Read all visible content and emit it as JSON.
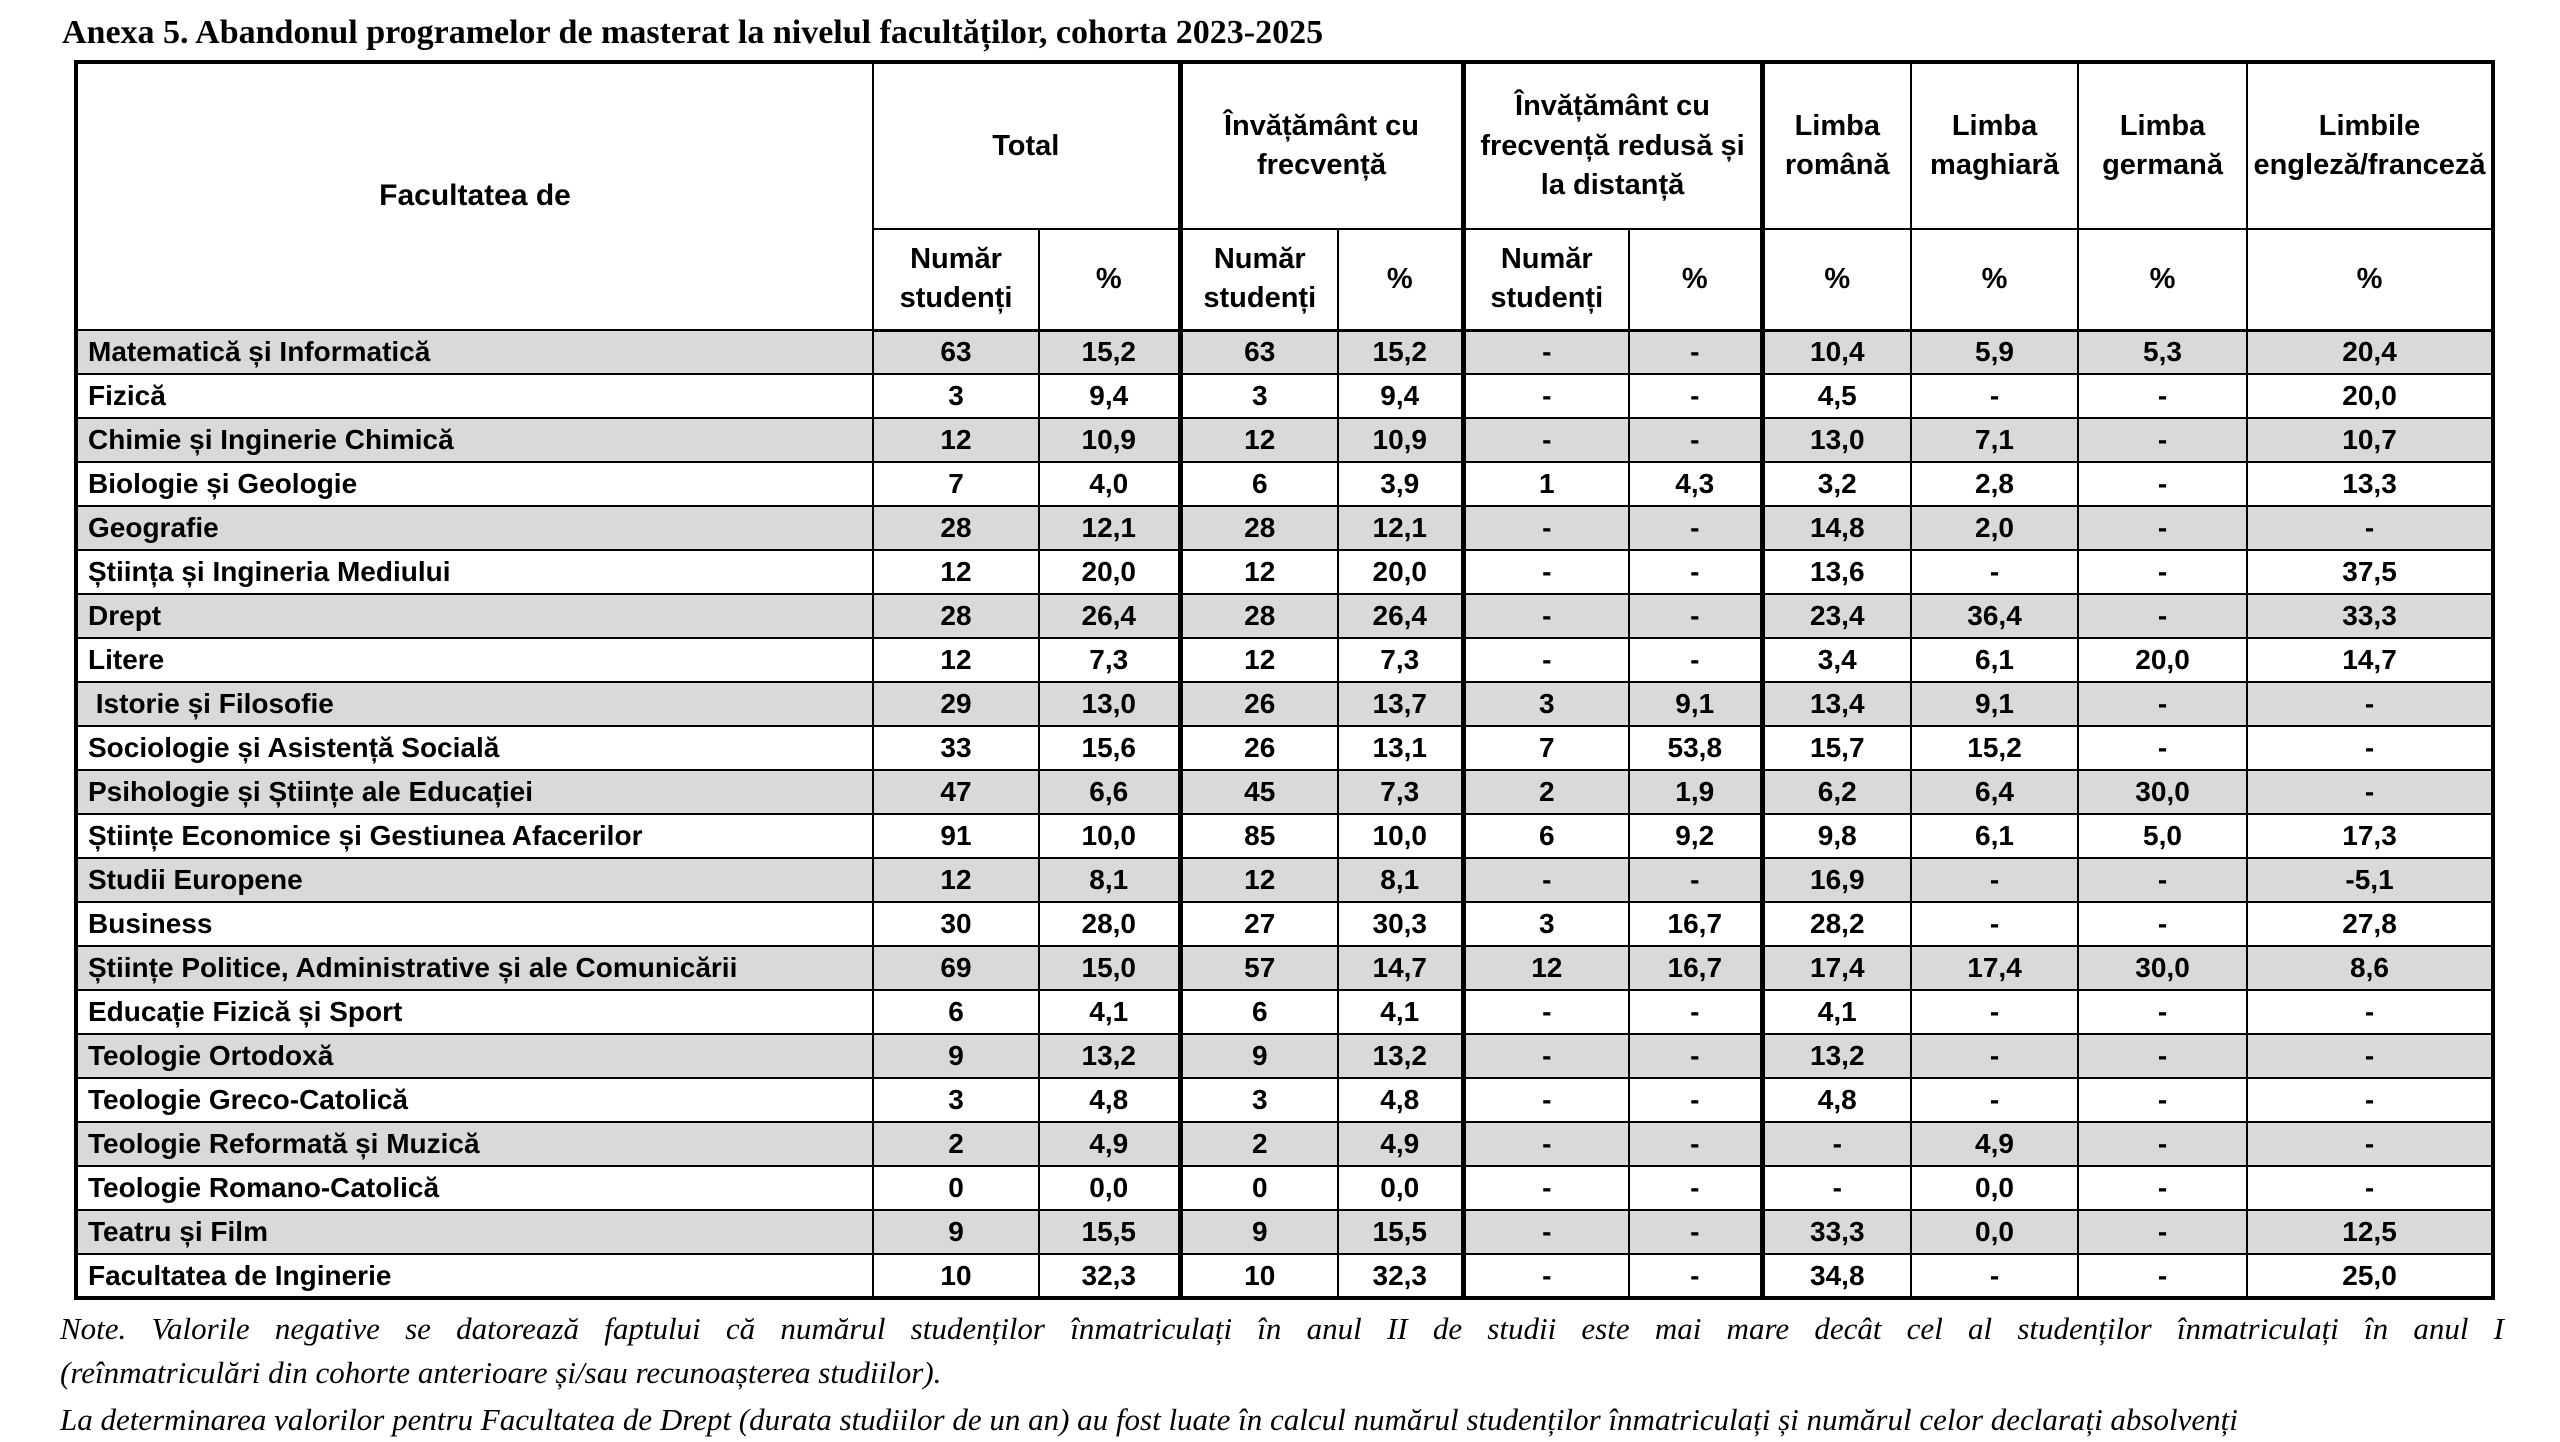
{
  "title": "Anexa 5. Abandonul programelor de masterat la nivelul facultăților, cohorta 2023-2025",
  "table": {
    "facultatea_header": "Facultatea de",
    "num_header": "Număr studenți",
    "pct_header": "%",
    "groups": [
      {
        "label": "Total"
      },
      {
        "label": "Învățământ cu frecvență"
      },
      {
        "label": "Învățământ cu frecvență redusă și la distanță"
      },
      {
        "label": "Limba română"
      },
      {
        "label": "Limba maghiară"
      },
      {
        "label": "Limba germană"
      },
      {
        "label": "Limbile engleză/franceză"
      }
    ],
    "rows": [
      {
        "facultatea": "Matematică și Informatică",
        "values": [
          "63",
          "15,2",
          "63",
          "15,2",
          "-",
          "-",
          "10,4",
          "5,9",
          "5,3",
          "20,4"
        ]
      },
      {
        "facultatea": "Fizică",
        "values": [
          "3",
          "9,4",
          "3",
          "9,4",
          "-",
          "-",
          "4,5",
          "-",
          "-",
          "20,0"
        ]
      },
      {
        "facultatea": "Chimie și Inginerie Chimică",
        "values": [
          "12",
          "10,9",
          "12",
          "10,9",
          "-",
          "-",
          "13,0",
          "7,1",
          "-",
          "10,7"
        ]
      },
      {
        "facultatea": "Biologie și Geologie",
        "values": [
          "7",
          "4,0",
          "6",
          "3,9",
          "1",
          "4,3",
          "3,2",
          "2,8",
          "-",
          "13,3"
        ]
      },
      {
        "facultatea": "Geografie",
        "values": [
          "28",
          "12,1",
          "28",
          "12,1",
          "-",
          "-",
          "14,8",
          "2,0",
          "-",
          "-"
        ]
      },
      {
        "facultatea": "Știința și Ingineria Mediului",
        "values": [
          "12",
          "20,0",
          "12",
          "20,0",
          "-",
          "-",
          "13,6",
          "-",
          "-",
          "37,5"
        ]
      },
      {
        "facultatea": "Drept",
        "values": [
          "28",
          "26,4",
          "28",
          "26,4",
          "-",
          "-",
          "23,4",
          "36,4",
          "-",
          "33,3"
        ]
      },
      {
        "facultatea": "Litere",
        "values": [
          "12",
          "7,3",
          "12",
          "7,3",
          "-",
          "-",
          "3,4",
          "6,1",
          "20,0",
          "14,7"
        ]
      },
      {
        "facultatea": " Istorie și Filosofie",
        "values": [
          "29",
          "13,0",
          "26",
          "13,7",
          "3",
          "9,1",
          "13,4",
          "9,1",
          "-",
          "-"
        ]
      },
      {
        "facultatea": "Sociologie și Asistență Socială",
        "values": [
          "33",
          "15,6",
          "26",
          "13,1",
          "7",
          "53,8",
          "15,7",
          "15,2",
          "-",
          "-"
        ]
      },
      {
        "facultatea": "Psihologie și Științe ale Educației",
        "values": [
          "47",
          "6,6",
          "45",
          "7,3",
          "2",
          "1,9",
          "6,2",
          "6,4",
          "30,0",
          "-"
        ]
      },
      {
        "facultatea": "Științe Economice și Gestiunea Afacerilor",
        "values": [
          "91",
          "10,0",
          "85",
          "10,0",
          "6",
          "9,2",
          "9,8",
          "6,1",
          "5,0",
          "17,3"
        ]
      },
      {
        "facultatea": "Studii Europene",
        "values": [
          "12",
          "8,1",
          "12",
          "8,1",
          "-",
          "-",
          "16,9",
          "-",
          "-",
          "-5,1"
        ]
      },
      {
        "facultatea": "Business",
        "values": [
          "30",
          "28,0",
          "27",
          "30,3",
          "3",
          "16,7",
          "28,2",
          "-",
          "-",
          "27,8"
        ]
      },
      {
        "facultatea": "Științe Politice, Administrative și ale Comunicării",
        "values": [
          "69",
          "15,0",
          "57",
          "14,7",
          "12",
          "16,7",
          "17,4",
          "17,4",
          "30,0",
          "8,6"
        ]
      },
      {
        "facultatea": "Educație Fizică și Sport",
        "values": [
          "6",
          "4,1",
          "6",
          "4,1",
          "-",
          "-",
          "4,1",
          "-",
          "-",
          "-"
        ]
      },
      {
        "facultatea": "Teologie Ortodoxă",
        "values": [
          "9",
          "13,2",
          "9",
          "13,2",
          "-",
          "-",
          "13,2",
          "-",
          "-",
          "-"
        ]
      },
      {
        "facultatea": "Teologie Greco-Catolică",
        "values": [
          "3",
          "4,8",
          "3",
          "4,8",
          "-",
          "-",
          "4,8",
          "-",
          "-",
          "-"
        ]
      },
      {
        "facultatea": "Teologie Reformată și Muzică",
        "values": [
          "2",
          "4,9",
          "2",
          "4,9",
          "-",
          "-",
          "-",
          "4,9",
          "-",
          "-"
        ]
      },
      {
        "facultatea": "Teologie Romano-Catolică",
        "values": [
          "0",
          "0,0",
          "0",
          "0,0",
          "-",
          "-",
          "-",
          "0,0",
          "-",
          "-"
        ]
      },
      {
        "facultatea": "Teatru și Film",
        "values": [
          "9",
          "15,5",
          "9",
          "15,5",
          "-",
          "-",
          "33,3",
          "0,0",
          "-",
          "12,5"
        ]
      },
      {
        "facultatea": "Facultatea de Inginerie",
        "values": [
          "10",
          "32,3",
          "10",
          "32,3",
          "-",
          "-",
          "34,8",
          "-",
          "-",
          "25,0"
        ]
      }
    ]
  },
  "notes": {
    "line1": "Note. Valorile negative se datorează faptului că numărul studenților înmatriculați în anul II de studii este mai mare decât cel al studenților înmatriculați în anul I",
    "line2": "(reînmatriculări din cohorte anterioare și/sau recunoașterea studiilor).",
    "line3": "La determinarea valorilor pentru Facultatea de Drept (durata studiilor de un an) au fost luate în calcul numărul studenților înmatriculați și numărul celor declarați absolvenți"
  },
  "colors": {
    "stripe": "#d9d9d9",
    "border": "#000000",
    "background": "#ffffff"
  }
}
